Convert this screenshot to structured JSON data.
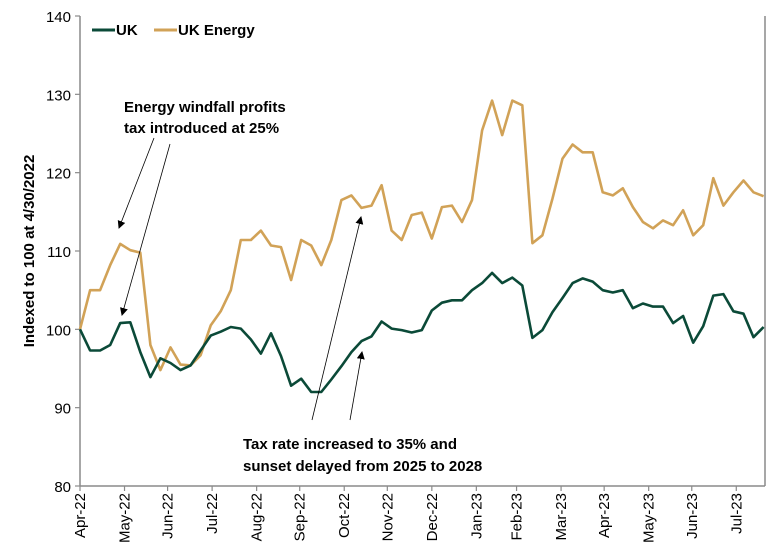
{
  "chart_data": {
    "type": "line",
    "title": "",
    "xlabel": "",
    "ylabel": "Indexed to 100 at 4/30/2022",
    "ylim": [
      80,
      140
    ],
    "yticks": [
      80,
      90,
      100,
      110,
      120,
      130,
      140
    ],
    "xlim": [
      "2022-04-30",
      "2023-08-20"
    ],
    "xticks": [
      {
        "date": "2022-04-30",
        "label": "Apr-22"
      },
      {
        "date": "2022-05-31",
        "label": "May-22"
      },
      {
        "date": "2022-06-30",
        "label": "Jun-22"
      },
      {
        "date": "2022-07-31",
        "label": "Jul-22"
      },
      {
        "date": "2022-08-31",
        "label": "Aug-22"
      },
      {
        "date": "2022-09-30",
        "label": "Sep-22"
      },
      {
        "date": "2022-10-31",
        "label": "Oct-22"
      },
      {
        "date": "2022-11-30",
        "label": "Nov-22"
      },
      {
        "date": "2022-12-31",
        "label": "Dec-22"
      },
      {
        "date": "2023-01-31",
        "label": "Jan-23"
      },
      {
        "date": "2023-02-28",
        "label": "Feb-23"
      },
      {
        "date": "2023-03-31",
        "label": "Mar-23"
      },
      {
        "date": "2023-04-30",
        "label": "Apr-23"
      },
      {
        "date": "2023-05-31",
        "label": "May-23"
      },
      {
        "date": "2023-06-30",
        "label": "Jun-23"
      },
      {
        "date": "2023-07-31",
        "label": "Jul-23"
      }
    ],
    "grid": false,
    "legend_position": "top-left",
    "x": [
      "2022-04-30",
      "2022-05-07",
      "2022-05-14",
      "2022-05-21",
      "2022-05-28",
      "2022-06-04",
      "2022-06-11",
      "2022-06-18",
      "2022-06-25",
      "2022-07-02",
      "2022-07-09",
      "2022-07-16",
      "2022-07-23",
      "2022-07-30",
      "2022-08-06",
      "2022-08-13",
      "2022-08-20",
      "2022-08-27",
      "2022-09-03",
      "2022-09-10",
      "2022-09-17",
      "2022-09-24",
      "2022-10-01",
      "2022-10-08",
      "2022-10-15",
      "2022-10-22",
      "2022-10-29",
      "2022-11-05",
      "2022-11-12",
      "2022-11-19",
      "2022-11-26",
      "2022-12-03",
      "2022-12-10",
      "2022-12-17",
      "2022-12-24",
      "2022-12-31",
      "2023-01-07",
      "2023-01-14",
      "2023-01-21",
      "2023-01-28",
      "2023-02-04",
      "2023-02-11",
      "2023-02-18",
      "2023-02-25",
      "2023-03-04",
      "2023-03-11",
      "2023-03-18",
      "2023-03-25",
      "2023-04-01",
      "2023-04-08",
      "2023-04-15",
      "2023-04-22",
      "2023-04-29",
      "2023-05-06",
      "2023-05-13",
      "2023-05-20",
      "2023-05-27",
      "2023-06-03",
      "2023-06-10",
      "2023-06-17",
      "2023-06-24",
      "2023-07-01",
      "2023-07-08",
      "2023-07-15",
      "2023-07-22",
      "2023-07-29",
      "2023-08-05",
      "2023-08-12",
      "2023-08-19"
    ],
    "series": [
      {
        "name": "UK",
        "color": "#0b4a38",
        "values": [
          100.0,
          97.3,
          97.3,
          98.0,
          100.8,
          100.9,
          97.1,
          93.9,
          96.3,
          95.7,
          94.8,
          95.4,
          97.3,
          99.2,
          99.7,
          100.3,
          100.1,
          98.7,
          96.9,
          99.5,
          96.6,
          92.8,
          93.7,
          92.0,
          92.0,
          93.6,
          95.3,
          97.1,
          98.5,
          99.1,
          101.0,
          100.1,
          99.9,
          99.6,
          99.9,
          102.4,
          103.4,
          103.7,
          103.7,
          105.0,
          105.9,
          107.2,
          105.9,
          106.6,
          105.6,
          98.9,
          99.9,
          102.2,
          104.0,
          105.9,
          106.5,
          106.1,
          105.0,
          104.7,
          105.0,
          102.7,
          103.3,
          102.9,
          102.9,
          100.8,
          101.7,
          98.3,
          100.4,
          104.3,
          104.5,
          102.3,
          102.0,
          99.0,
          100.3
        ]
      },
      {
        "name": "UK Energy",
        "color": "#d1a257",
        "values": [
          100.0,
          105.0,
          105.0,
          108.2,
          110.9,
          110.1,
          109.8,
          98.0,
          94.8,
          97.7,
          95.5,
          95.4,
          96.7,
          100.5,
          102.3,
          105.0,
          111.4,
          111.4,
          112.6,
          110.7,
          110.5,
          106.3,
          111.4,
          110.7,
          108.2,
          111.4,
          116.5,
          117.1,
          115.5,
          115.8,
          118.4,
          112.6,
          111.4,
          114.6,
          114.9,
          111.6,
          115.6,
          115.8,
          113.7,
          116.5,
          125.4,
          129.2,
          124.8,
          129.2,
          128.6,
          111.0,
          112.0,
          116.7,
          121.8,
          123.6,
          122.6,
          122.6,
          117.5,
          117.1,
          118.0,
          115.6,
          113.7,
          112.9,
          113.9,
          113.3,
          115.2,
          112.0,
          113.3,
          119.3,
          115.8,
          117.5,
          119.0,
          117.5,
          117.0
        ]
      }
    ],
    "annotations": [
      {
        "lines": [
          "Energy windfall profits",
          "tax introduced at 25%"
        ],
        "points_to": "2022-05"
      },
      {
        "lines": [
          "Tax rate increased to 35% and",
          "sunset delayed from 2025 to 2028"
        ],
        "points_to": "2022-10"
      }
    ]
  }
}
